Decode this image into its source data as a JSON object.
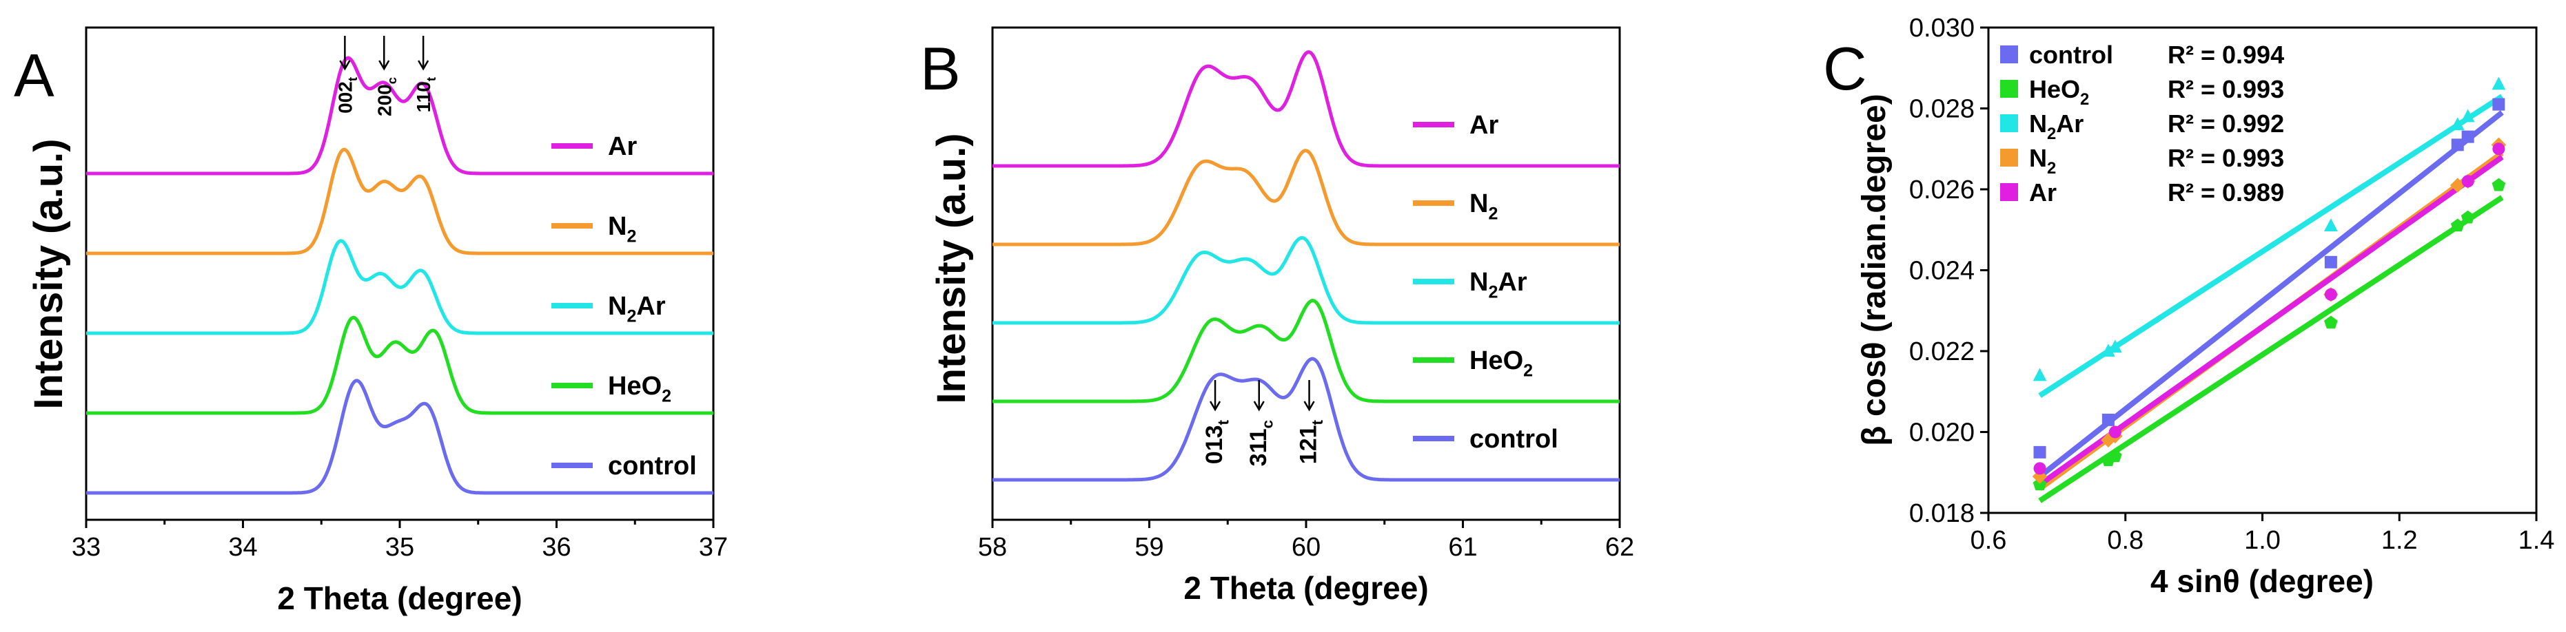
{
  "figure": {
    "colors": {
      "Ar": "#e020e0",
      "N2": "#f59a2e",
      "N2Ar": "#22e6e6",
      "HeO2": "#22dd22",
      "control": "#6b6bf0"
    }
  },
  "chart_data": [
    {
      "panel": "A",
      "type": "line",
      "xlabel": "2 Theta (degree)",
      "ylabel": "Intensity (a.u.)",
      "xlim": [
        33,
        37
      ],
      "xticks": [
        "33",
        "34",
        "35",
        "36",
        "37"
      ],
      "peak_labels": [
        {
          "base": "002",
          "sub": "t",
          "x": 34.65
        },
        {
          "base": "200",
          "sub": "c",
          "x": 34.9
        },
        {
          "base": "110",
          "sub": "t",
          "x": 35.15
        }
      ],
      "series": [
        {
          "key": "Ar",
          "name": "Ar",
          "sub": "",
          "tail": "",
          "color": "#e020e0",
          "offset": 4,
          "peaks": [
            [
              34.66,
              1.0,
              0.09
            ],
            [
              34.9,
              0.78,
              0.1
            ],
            [
              35.15,
              0.78,
              0.09
            ]
          ]
        },
        {
          "key": "N2",
          "name": "N",
          "sub": "2",
          "tail": "",
          "color": "#f59a2e",
          "offset": 3,
          "peaks": [
            [
              34.64,
              0.92,
              0.09
            ],
            [
              34.9,
              0.62,
              0.1
            ],
            [
              35.14,
              0.66,
              0.09
            ]
          ]
        },
        {
          "key": "N2Ar",
          "name": "N",
          "sub": "2",
          "tail": "Ar",
          "color": "#22e6e6",
          "offset": 2,
          "peaks": [
            [
              34.62,
              0.82,
              0.09
            ],
            [
              34.88,
              0.52,
              0.1
            ],
            [
              35.14,
              0.55,
              0.09
            ]
          ]
        },
        {
          "key": "HeO2",
          "name": "HeO",
          "sub": "2",
          "tail": "",
          "color": "#22dd22",
          "offset": 1,
          "peaks": [
            [
              34.7,
              0.85,
              0.09
            ],
            [
              34.97,
              0.62,
              0.1
            ],
            [
              35.22,
              0.72,
              0.09
            ]
          ]
        },
        {
          "key": "control",
          "name": "control",
          "sub": "",
          "tail": "",
          "color": "#6b6bf0",
          "offset": 0,
          "peaks": [
            [
              34.72,
              1.0,
              0.1
            ],
            [
              34.98,
              0.55,
              0.1
            ],
            [
              35.18,
              0.72,
              0.09
            ]
          ]
        }
      ]
    },
    {
      "panel": "B",
      "type": "line",
      "xlabel": "2 Theta (degree)",
      "ylabel": "Intensity (a.u.)",
      "xlim": [
        58,
        62
      ],
      "xticks": [
        "58",
        "59",
        "60",
        "61",
        "62"
      ],
      "peak_labels": [
        {
          "base": "013",
          "sub": "t",
          "x": 59.42
        },
        {
          "base": "311",
          "sub": "c",
          "x": 59.7
        },
        {
          "base": "121",
          "sub": "t",
          "x": 60.02
        }
      ],
      "series": [
        {
          "key": "Ar",
          "name": "Ar",
          "sub": "",
          "tail": "",
          "color": "#e020e0",
          "offset": 4,
          "peaks": [
            [
              59.35,
              0.95,
              0.13
            ],
            [
              59.65,
              0.82,
              0.13
            ],
            [
              60.02,
              1.15,
              0.11
            ]
          ]
        },
        {
          "key": "N2",
          "name": "N",
          "sub": "2",
          "tail": "",
          "color": "#f59a2e",
          "offset": 3,
          "peaks": [
            [
              59.33,
              0.78,
              0.13
            ],
            [
              59.62,
              0.68,
              0.13
            ],
            [
              60.0,
              0.95,
              0.11
            ]
          ]
        },
        {
          "key": "N2Ar",
          "name": "N",
          "sub": "2",
          "tail": "Ar",
          "color": "#22e6e6",
          "offset": 2,
          "peaks": [
            [
              59.33,
              0.68,
              0.13
            ],
            [
              59.64,
              0.6,
              0.13
            ],
            [
              59.98,
              0.85,
              0.11
            ]
          ]
        },
        {
          "key": "HeO2",
          "name": "HeO",
          "sub": "2",
          "tail": "",
          "color": "#22dd22",
          "offset": 1,
          "peaks": [
            [
              59.4,
              0.8,
              0.13
            ],
            [
              59.72,
              0.72,
              0.13
            ],
            [
              60.05,
              1.0,
              0.11
            ]
          ]
        },
        {
          "key": "control",
          "name": "control",
          "sub": "",
          "tail": "",
          "color": "#6b6bf0",
          "offset": 0,
          "peaks": [
            [
              59.42,
              1.0,
              0.14
            ],
            [
              59.72,
              0.88,
              0.13
            ],
            [
              60.05,
              1.2,
              0.12
            ]
          ]
        }
      ]
    },
    {
      "panel": "C",
      "type": "scatter",
      "xlabel": "4 sinθ (degree)",
      "ylabel": "β cosθ (radian.degree)",
      "xlim": [
        0.6,
        1.4
      ],
      "ylim": [
        0.018,
        0.03
      ],
      "xticks": [
        "0.6",
        "0.8",
        "1.0",
        "1.2",
        "1.4"
      ],
      "yticks": [
        "0.018",
        "0.020",
        "0.022",
        "0.024",
        "0.026",
        "0.028",
        "0.030"
      ],
      "series": [
        {
          "key": "control",
          "name": "control",
          "sub": "",
          "tail": "",
          "r2": "R² = 0.994",
          "color": "#6b6bf0",
          "marker": "square",
          "x": [
            0.675,
            0.775,
            1.1,
            1.285,
            1.3,
            1.345
          ],
          "y": [
            0.0195,
            0.0203,
            0.0242,
            0.0271,
            0.0273,
            0.0281
          ],
          "fit": [
            [
              0.675,
              0.0189
            ],
            [
              1.35,
              0.0279
            ]
          ]
        },
        {
          "key": "HeO2",
          "name": "HeO",
          "sub": "2",
          "tail": "",
          "r2": "R² = 0.993",
          "color": "#22dd22",
          "marker": "pentagon",
          "x": [
            0.675,
            0.775,
            0.785,
            1.1,
            1.285,
            1.3,
            1.345
          ],
          "y": [
            0.0187,
            0.0193,
            0.0194,
            0.0227,
            0.0251,
            0.0253,
            0.0261
          ],
          "fit": [
            [
              0.675,
              0.0183
            ],
            [
              1.35,
              0.0258
            ]
          ]
        },
        {
          "key": "N2Ar",
          "name": "N",
          "sub": "2",
          "tail": "Ar",
          "r2": "R² = 0.992",
          "color": "#22e6e6",
          "marker": "triangle",
          "x": [
            0.675,
            0.775,
            0.785,
            1.1,
            1.285,
            1.3,
            1.345
          ],
          "y": [
            0.0214,
            0.022,
            0.0221,
            0.0251,
            0.0276,
            0.0278,
            0.0286
          ],
          "fit": [
            [
              0.675,
              0.0209
            ],
            [
              1.35,
              0.0283
            ]
          ]
        },
        {
          "key": "N2",
          "name": "N",
          "sub": "2",
          "tail": "",
          "r2": "R² = 0.993",
          "color": "#f59a2e",
          "marker": "diamond",
          "x": [
            0.675,
            0.775,
            0.785,
            1.1,
            1.285,
            1.3,
            1.345
          ],
          "y": [
            0.0189,
            0.0198,
            0.0199,
            0.0234,
            0.0261,
            0.0262,
            0.0271
          ],
          "fit": [
            [
              0.675,
              0.0186
            ],
            [
              1.35,
              0.0269
            ]
          ]
        },
        {
          "key": "Ar",
          "name": "Ar",
          "sub": "",
          "tail": "",
          "r2": "R² = 0.989",
          "color": "#e020e0",
          "marker": "circle",
          "x": [
            0.675,
            0.785,
            1.1,
            1.3,
            1.345
          ],
          "y": [
            0.0191,
            0.02,
            0.0234,
            0.0262,
            0.027
          ],
          "fit": [
            [
              0.675,
              0.0187
            ],
            [
              1.35,
              0.0268
            ]
          ]
        }
      ]
    }
  ]
}
